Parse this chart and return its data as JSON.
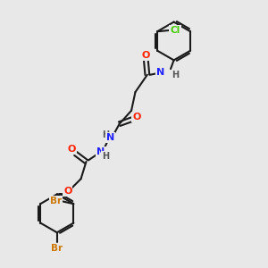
{
  "bg_color": "#e8e8e8",
  "bond_color": "#1a1a1a",
  "atom_colors": {
    "O": "#ff2200",
    "N": "#2222ff",
    "Cl": "#44cc00",
    "Br": "#cc7700",
    "H": "#555555",
    "C": "#1a1a1a"
  }
}
